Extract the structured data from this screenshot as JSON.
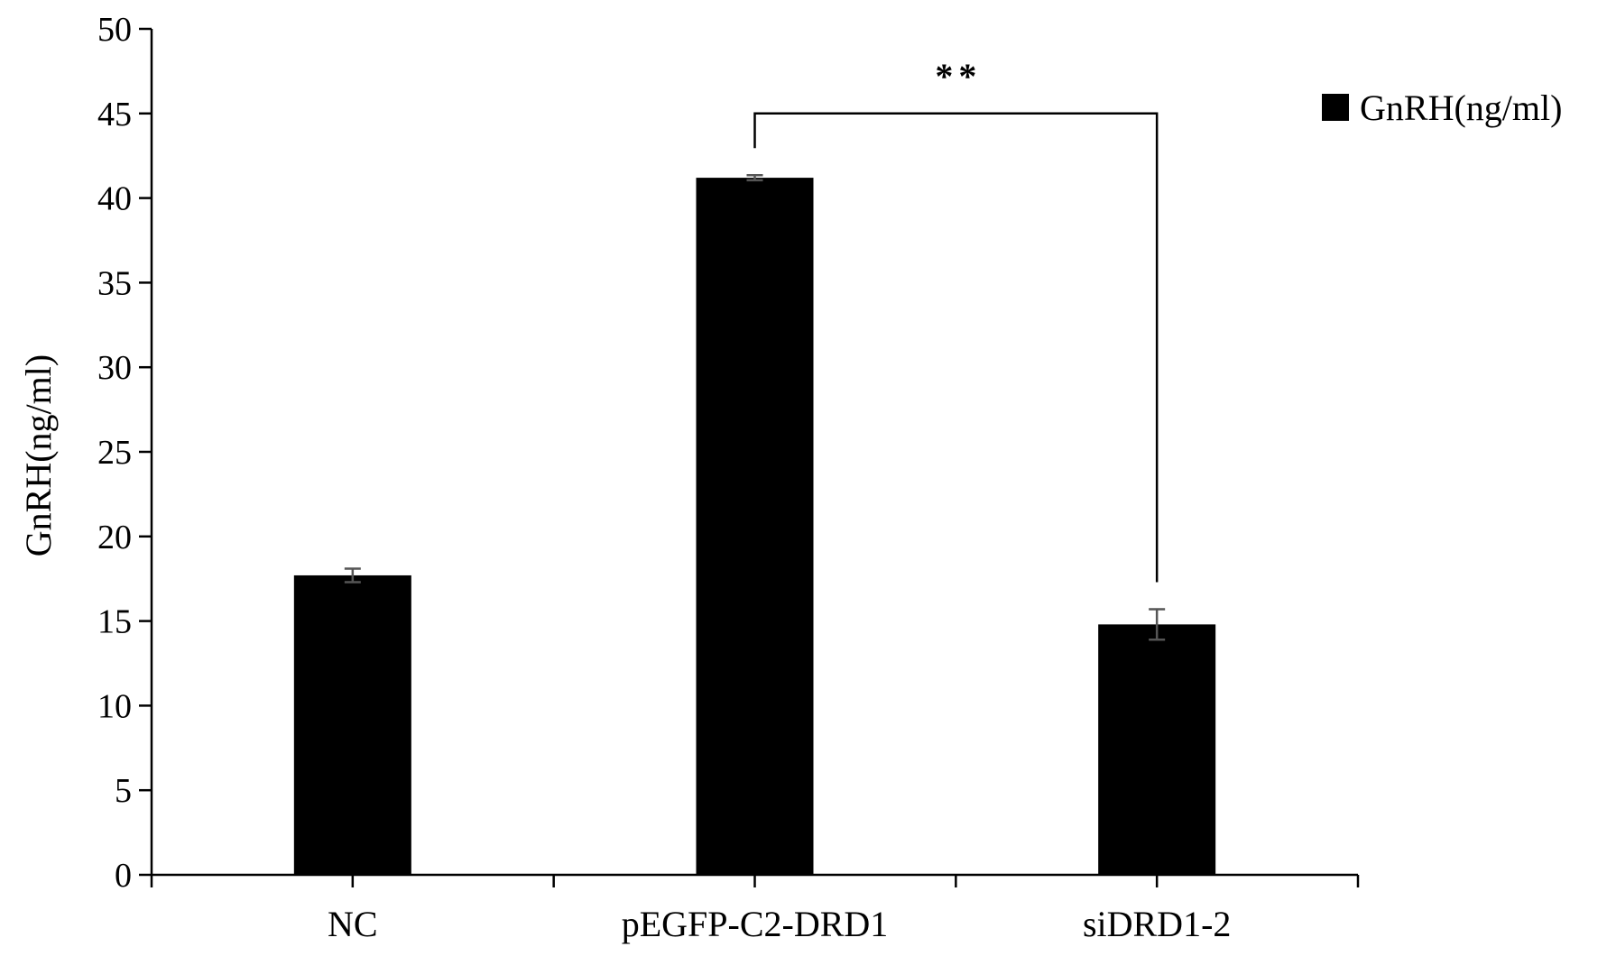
{
  "chart_data": {
    "type": "bar",
    "title": "",
    "xlabel": "",
    "ylabel": "GnRH(ng/ml)",
    "categories": [
      "NC",
      "pEGFP-C2-DRD1",
      "siDRD1-2"
    ],
    "series": [
      {
        "name": "GnRH(ng/ml)",
        "values": [
          17.7,
          41.2,
          14.8
        ],
        "errors": [
          0.4,
          0.15,
          0.9
        ],
        "color": "#000000"
      }
    ],
    "ylim": [
      0,
      50
    ],
    "yticks": [
      "0",
      "5",
      "10",
      "15",
      "20",
      "25",
      "30",
      "35",
      "40",
      "45",
      "50"
    ],
    "grid": false,
    "legend_position": "top-right",
    "significance": {
      "label": "**",
      "from_category": "pEGFP-C2-DRD1",
      "to_category": "siDRD1-2",
      "bracket_value": 45
    },
    "error_bar_color": "#555555"
  }
}
